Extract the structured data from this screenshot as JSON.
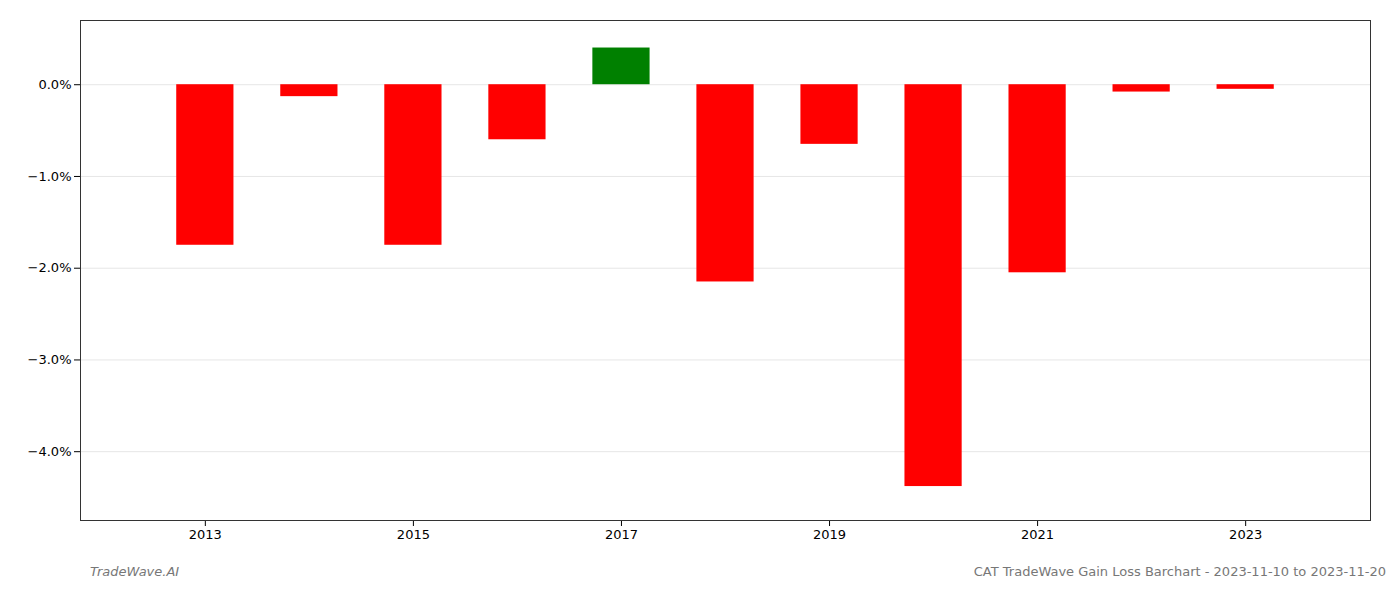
{
  "chart_data": {
    "type": "bar",
    "x": [
      2013,
      2014,
      2015,
      2016,
      2017,
      2018,
      2019,
      2020,
      2021,
      2022,
      2023
    ],
    "values": [
      -1.75,
      -0.13,
      -1.75,
      -0.6,
      0.4,
      -2.15,
      -0.65,
      -4.38,
      -2.05,
      -0.08,
      -0.05
    ],
    "colors": [
      "#ff0000",
      "#ff0000",
      "#ff0000",
      "#ff0000",
      "#008000",
      "#ff0000",
      "#ff0000",
      "#ff0000",
      "#ff0000",
      "#ff0000",
      "#ff0000"
    ],
    "xlim": [
      2011.8,
      2024.2
    ],
    "xticks": [
      2013,
      2015,
      2017,
      2019,
      2021,
      2023
    ],
    "ylim": [
      -4.75,
      0.7
    ],
    "yticks": [
      {
        "value": 0.0,
        "label": "0.0%"
      },
      {
        "value": -1.0,
        "label": "−1.0%"
      },
      {
        "value": -2.0,
        "label": "−2.0%"
      },
      {
        "value": -3.0,
        "label": "−3.0%"
      },
      {
        "value": -4.0,
        "label": "−4.0%"
      }
    ],
    "grid": true,
    "annotations": [
      "TradeWave.AI",
      "CAT TradeWave Gain Loss Barchart - 2023-11-10 to 2023-11-20"
    ]
  }
}
